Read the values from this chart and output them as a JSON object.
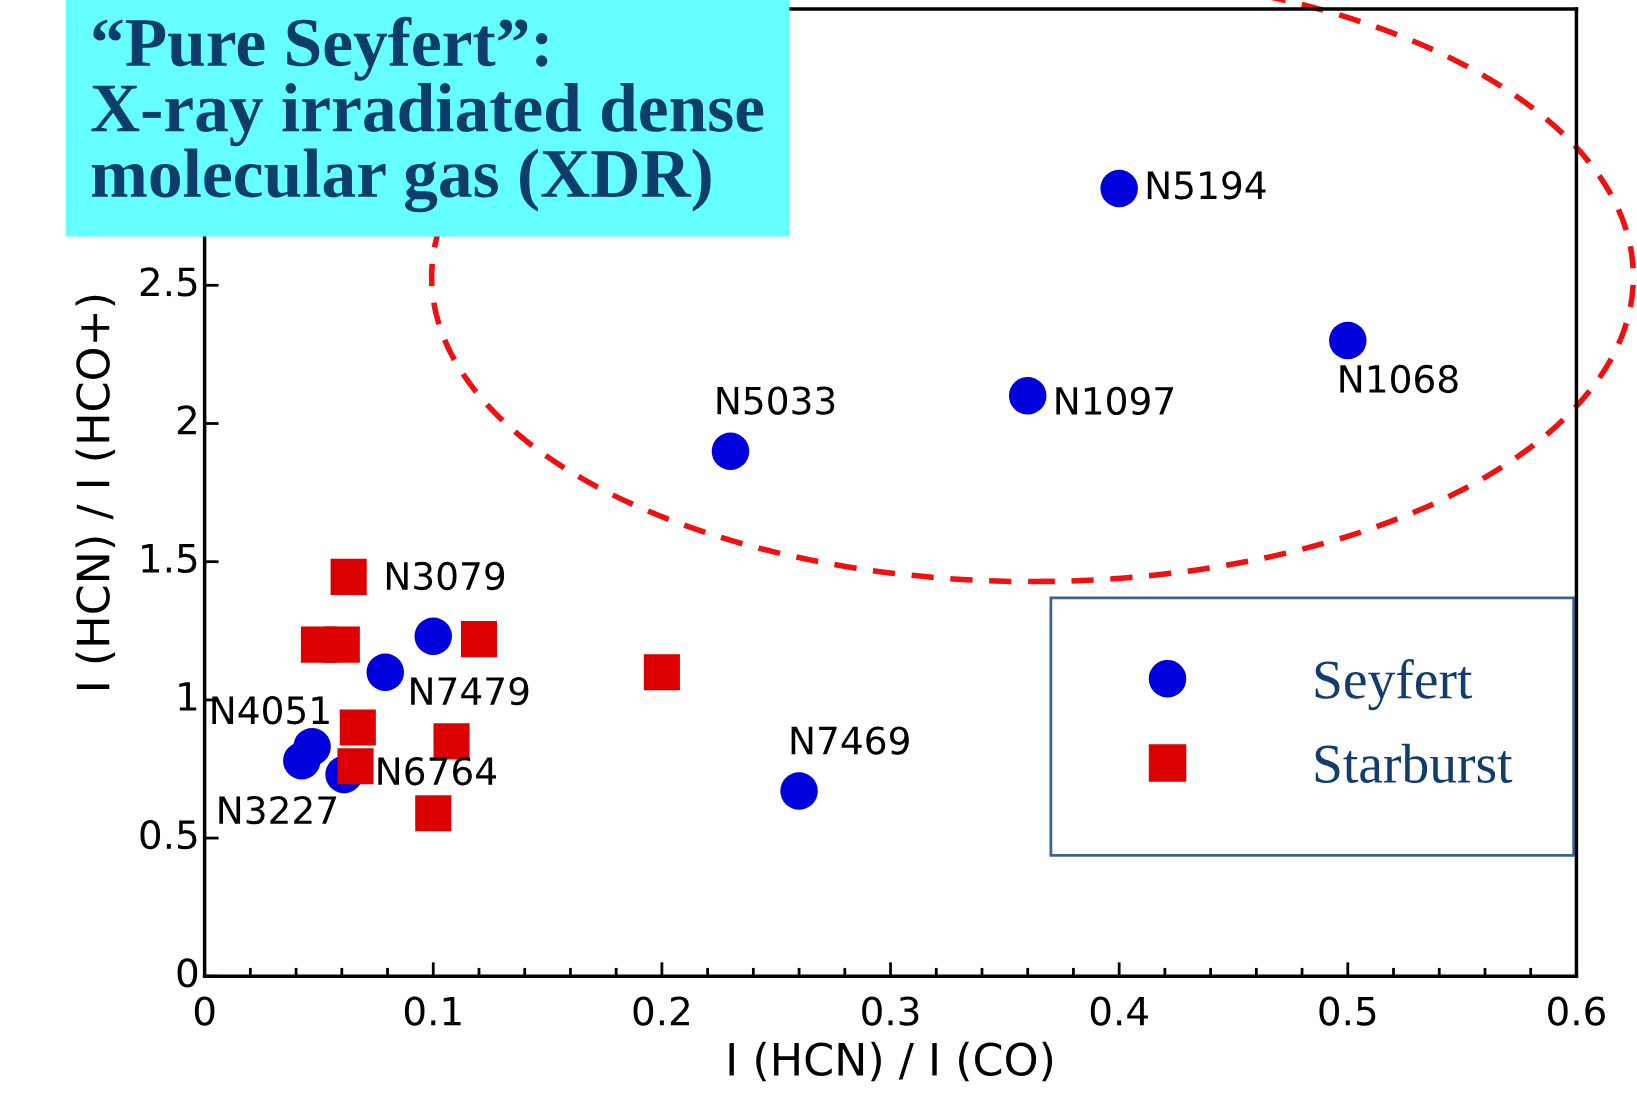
{
  "chart_data": {
    "type": "scatter",
    "title": "“Pure Seyfert”:\nX-ray irradiated dense\nmolecular gas (XDR)",
    "xlabel": "I (HCN) / I (CO)",
    "ylabel": "I (HCN) / I (HCO+)",
    "xlim": [
      0,
      0.6
    ],
    "xticks": [
      0,
      0.1,
      0.2,
      0.3,
      0.4,
      0.5,
      0.6
    ],
    "ylim": [
      0,
      3.5
    ],
    "yticks": [
      0,
      0.5,
      1,
      1.5,
      2,
      2.5
    ],
    "grid": false,
    "legend": "lower right",
    "series": [
      {
        "name": "Seyfert",
        "color": "#0000dd",
        "marker": "circle",
        "x": [
          0.4,
          0.5,
          0.36,
          0.23,
          0.26,
          0.1,
          0.079,
          0.047,
          0.0425,
          0.061
        ],
        "values": [
          2.85,
          2.3,
          2.1,
          1.9,
          0.67,
          1.23,
          1.1,
          0.83,
          0.78,
          0.73
        ]
      },
      {
        "name": "Starburst",
        "color": "#dd0000",
        "marker": "square",
        "x": [
          0.063,
          0.05,
          0.06,
          0.12,
          0.2,
          0.067,
          0.108,
          0.066,
          0.1
        ],
        "values": [
          1.445,
          1.2,
          1.2,
          1.22,
          1.1,
          0.9,
          0.85,
          0.76,
          0.59
        ]
      }
    ],
    "annotations": [
      {
        "text": "N5194",
        "x": 0.4,
        "y": 2.85
      },
      {
        "text": "N1068",
        "x": 0.5,
        "y": 2.3
      },
      {
        "text": "N1097",
        "x": 0.36,
        "y": 2.1
      },
      {
        "text": "N5033",
        "x": 0.23,
        "y": 1.9
      },
      {
        "text": "N7469",
        "x": 0.26,
        "y": 0.67
      },
      {
        "text": "N3079",
        "x": 0.1,
        "y": 1.23
      },
      {
        "text": "N7479",
        "x": 0.079,
        "y": 1.1
      },
      {
        "text": "N4051",
        "x": 0.047,
        "y": 0.83
      },
      {
        "text": "N3227",
        "x": 0.0425,
        "y": 0.78
      },
      {
        "text": "N6764",
        "x": 0.061,
        "y": 0.73
      }
    ]
  }
}
